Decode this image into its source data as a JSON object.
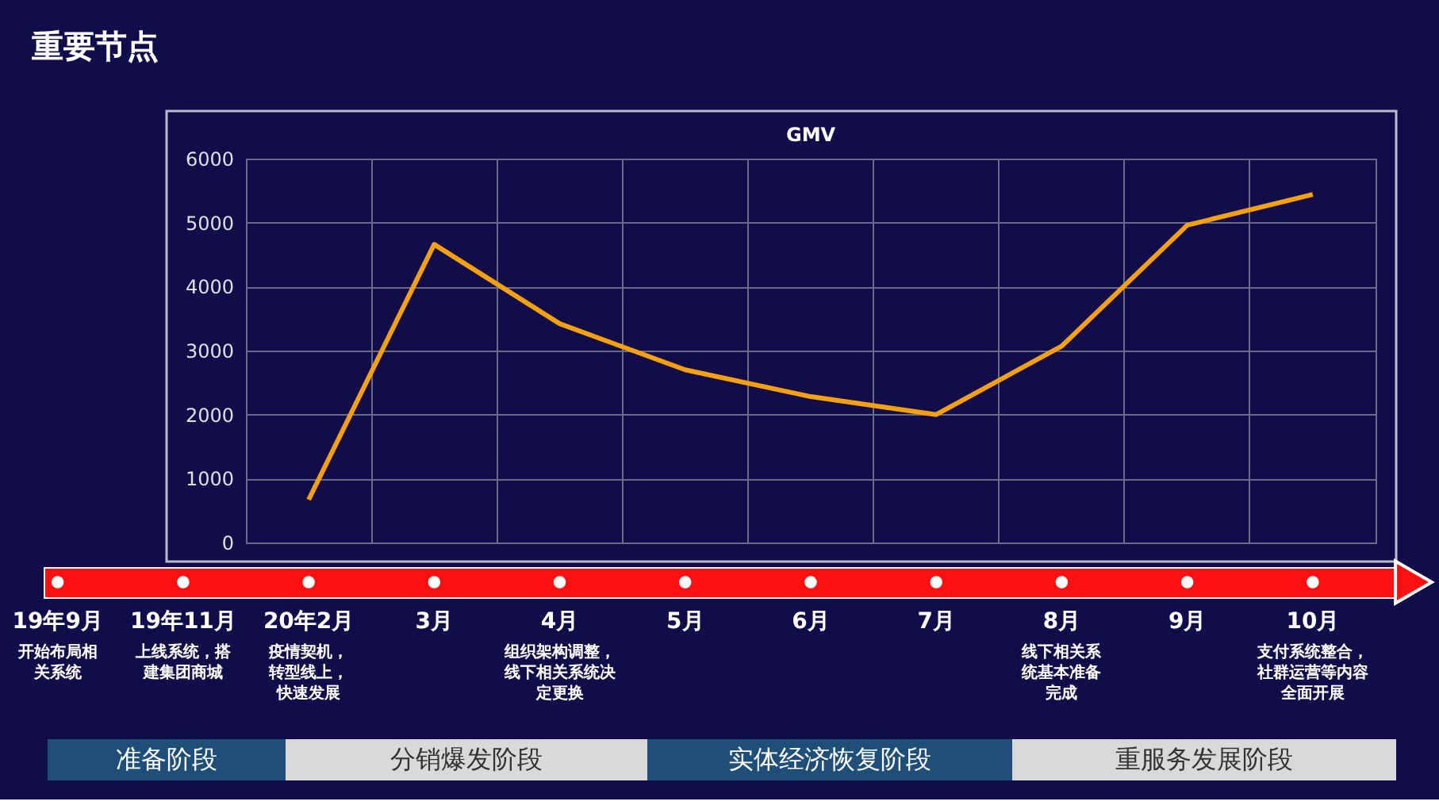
{
  "chart_data": {
    "type": "line",
    "title": "重要节点",
    "subtitle": "GMV",
    "categories": [
      null,
      null,
      null,
      null,
      null,
      null,
      null,
      null,
      null
    ],
    "series": [
      {
        "color": "#f5a00f",
        "values": [
          670,
          4660,
          3420,
          2700,
          2280,
          2000,
          3070,
          4960,
          5440
        ]
      }
    ],
    "ylim": [
      0,
      6000
    ],
    "yticks": [
      0,
      1000,
      2000,
      3000,
      4000,
      5000,
      6000
    ],
    "grid": true,
    "tick_labels": "y",
    "marker": "none",
    "line_style": "solid",
    "annotations": [
      "19年9月",
      "开始布局相关系统",
      "19年11月",
      "上线系统，搭建集团商城",
      "20年2月",
      "疫情契机，转型线上，快速发展",
      "3月",
      "4月",
      "组织架构调整，线下相关系统决定更换",
      "5月",
      "6月",
      "7月",
      "8月",
      "线下相关系统基本准备完成",
      "9月",
      "10月",
      "支付系统整合，社群运营等内容全面开展",
      "准备阶段",
      "分销爆发阶段",
      "实体经济恢复阶段",
      "重服务发展阶段"
    ]
  }
}
